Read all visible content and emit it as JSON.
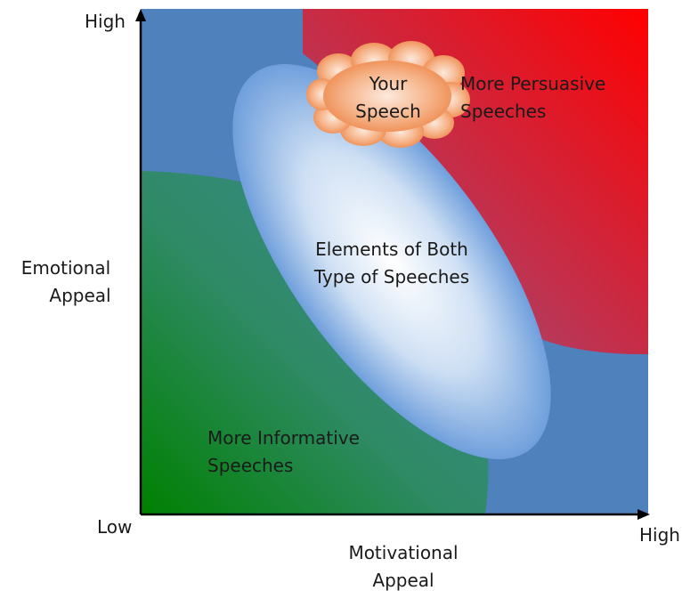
{
  "axes": {
    "y_label_line1": "Emotional",
    "y_label_line2": "Appeal",
    "x_label_line1": "Motivational",
    "x_label_line2": "Appeal",
    "y_high": "High",
    "x_high": "High",
    "origin_low": "Low"
  },
  "regions": {
    "persuasive": {
      "line1": "More Persuasive",
      "line2": "Speeches",
      "color": "#ff0000"
    },
    "informative": {
      "line1": "More Informative",
      "line2": "Speeches",
      "color": "#008000"
    },
    "both": {
      "line1": "Elements of Both",
      "line2": "Type of Speeches"
    },
    "your_speech": {
      "line1": "Your",
      "line2": "Speech",
      "color": "#f08a4b"
    }
  },
  "colors": {
    "background_blue": "#4f81bd",
    "axis": "#000000"
  }
}
